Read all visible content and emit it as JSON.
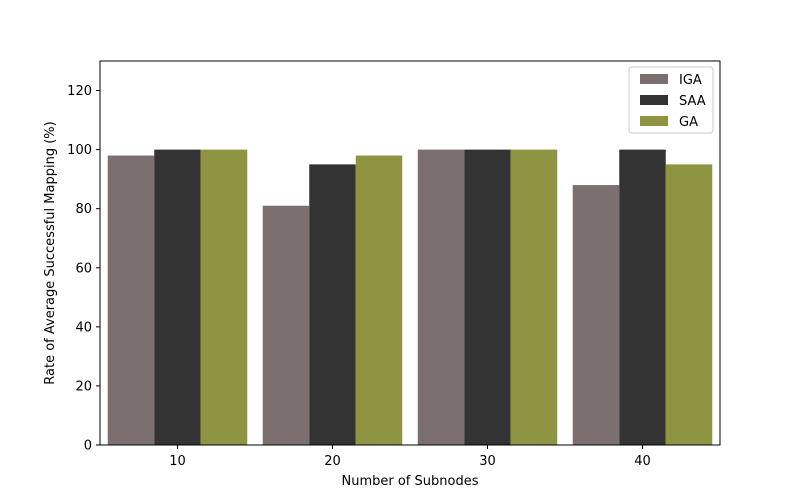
{
  "chart_data": {
    "type": "bar",
    "title": "",
    "xlabel": "Number of Subnodes",
    "ylabel": "Rate of Average Successful Mapping (%)",
    "categories": [
      "10",
      "20",
      "30",
      "40"
    ],
    "series": [
      {
        "name": "IGA",
        "values": [
          98,
          81,
          100,
          88
        ],
        "color": "#7b6f6f"
      },
      {
        "name": "SAA",
        "values": [
          100,
          95,
          100,
          100
        ],
        "color": "#333333"
      },
      {
        "name": "GA",
        "values": [
          100,
          98,
          100,
          95
        ],
        "color": "#8f9442"
      }
    ],
    "ylim": [
      0,
      130
    ],
    "yticks": [
      0,
      20,
      40,
      60,
      80,
      100,
      120
    ],
    "grid": false,
    "legend_position": "top-right"
  }
}
